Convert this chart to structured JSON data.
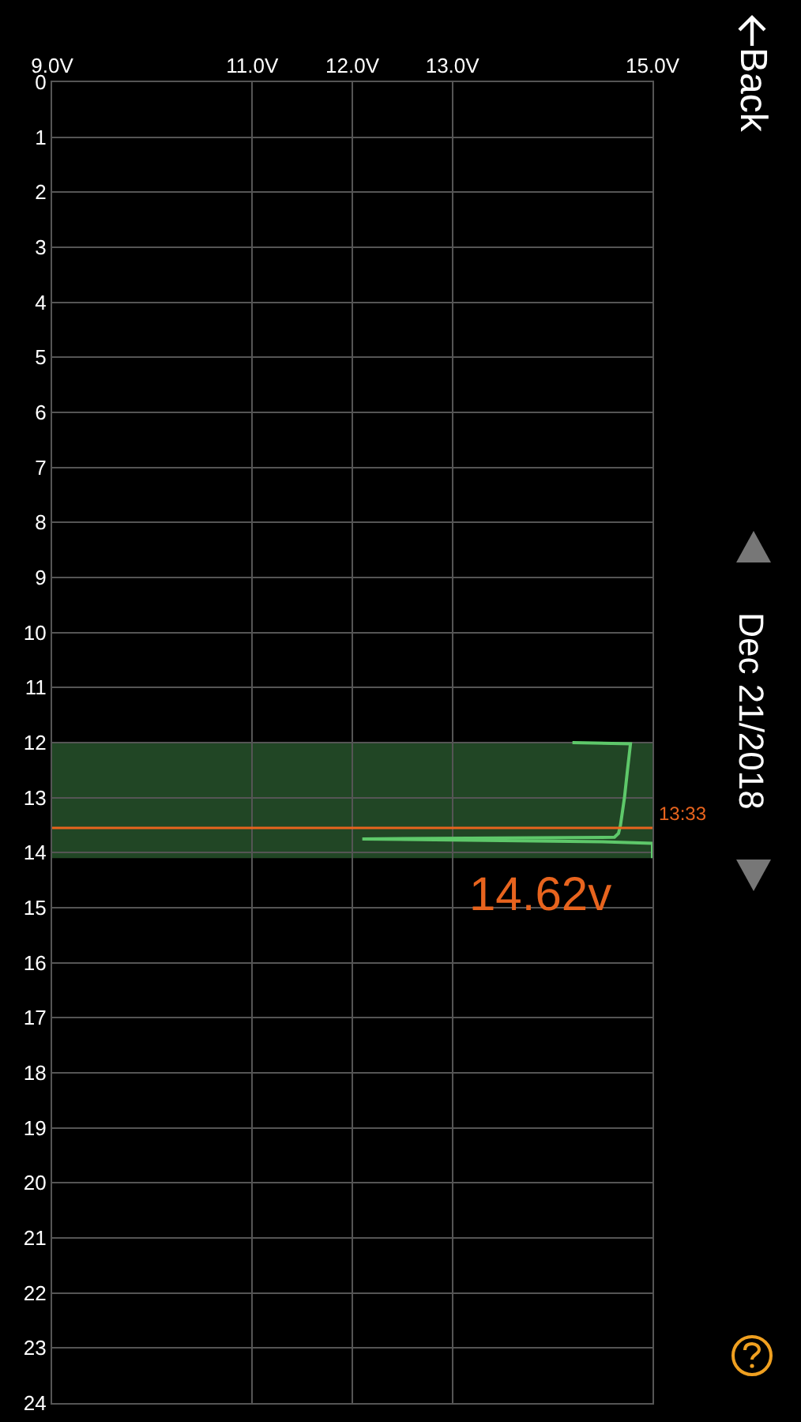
{
  "chart_data": {
    "type": "line",
    "title": "Dec 21/2018",
    "x": [
      14.2,
      14.78,
      14.75,
      14.72,
      14.68,
      14.66,
      14.62,
      12.1,
      14.5,
      15.0,
      15.0
    ],
    "series": [
      {
        "color": "#5ec86a",
        "values": [
          12.0,
          12.02,
          12.5,
          13.0,
          13.5,
          13.65,
          13.72,
          13.75,
          13.8,
          13.83,
          14.1
        ]
      }
    ],
    "xlim": [
      9,
      15
    ],
    "xticks": [
      {
        "value": 9,
        "label": "9.0V"
      },
      {
        "value": 11,
        "label": "11.0V"
      },
      {
        "value": 12,
        "label": "12.0V"
      },
      {
        "value": 13,
        "label": "13.0V"
      },
      {
        "value": 15,
        "label": "15.0V"
      }
    ],
    "ylim": [
      24,
      0
    ],
    "yticks": [
      0,
      1,
      2,
      3,
      4,
      5,
      6,
      7,
      8,
      9,
      10,
      11,
      12,
      13,
      14,
      15,
      16,
      17,
      18,
      19,
      20,
      21,
      22,
      23,
      24
    ],
    "grid": true,
    "marker": "none",
    "line_style": "solid",
    "bands": [
      {
        "axis": "y",
        "from": 12,
        "to": 14.1,
        "color": "#5ec86a"
      }
    ],
    "ref_lines": [
      {
        "axis": "y",
        "value": 13.55,
        "color": "#e8641e"
      }
    ],
    "annotations": [
      {
        "text": "13:33",
        "x": 15,
        "y": 13.55
      },
      {
        "text": "14.62v",
        "x": 14.62,
        "y": 13.55
      },
      "Back"
    ]
  }
}
